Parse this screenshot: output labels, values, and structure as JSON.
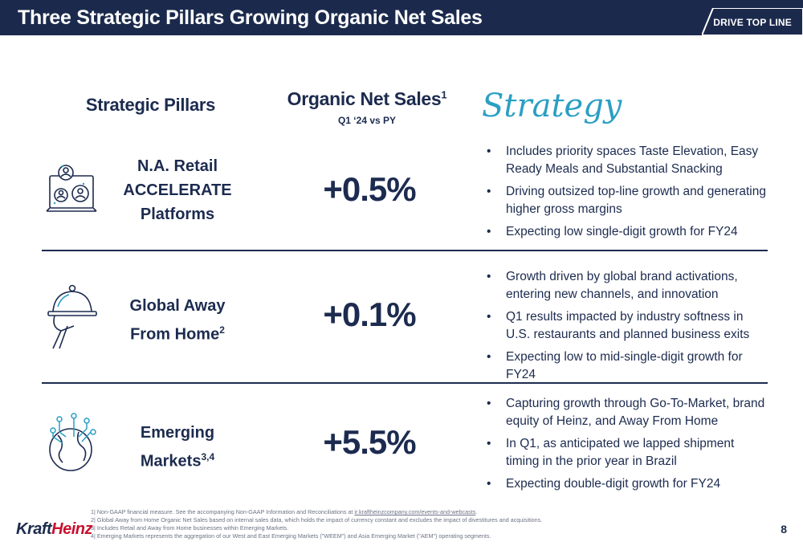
{
  "header": {
    "title": "Three Strategic Pillars Growing Organic Net Sales",
    "tag": "DRIVE TOP LINE"
  },
  "columns": {
    "pillars": "Strategic Pillars",
    "organic": "Organic Net Sales",
    "organic_sup": "1",
    "organic_sub": "Q1 ‘24 vs PY",
    "strategy": "Strategy"
  },
  "rows": [
    {
      "icon": "people-screen-icon",
      "pillar_lines": [
        "N.A. Retail",
        "ACCELERATE",
        "Platforms"
      ],
      "value": "+0.5%",
      "bullets": [
        "Includes priority spaces Taste Elevation, Easy Ready Meals and Substantial Snacking",
        "Driving outsized top-line growth and generating higher gross margins",
        "Expecting low single-digit growth for FY24"
      ]
    },
    {
      "icon": "cloche-icon",
      "pillar_lines": [
        "Global Away",
        "From Home"
      ],
      "pillar_sup": "2",
      "value": "+0.1%",
      "bullets": [
        "Growth driven by global brand activations, entering new channels, and innovation",
        "Q1 results impacted by industry softness in U.S. restaurants and planned business exits",
        "Expecting low to mid-single-digit growth for FY24"
      ]
    },
    {
      "icon": "globe-network-icon",
      "pillar_lines": [
        "Emerging",
        "Markets"
      ],
      "pillar_sup": "3,4",
      "value": "+5.5%",
      "bullets": [
        "Capturing growth through Go-To-Market, brand equity of Heinz, and Away From Home",
        "In Q1, as anticipated we lapped shipment timing in the prior year in Brazil",
        "Expecting double-digit growth for FY24"
      ]
    }
  ],
  "footnotes": {
    "f1_prefix": "1| Non-GAAP financial measure. See the accompanying Non-GAAP Information and Reconciliations at ",
    "f1_link": "ir.kraftheinzcompany.com/events-and-webcasts",
    "f1_suffix": ".",
    "f2": "2| Global Away from Home Organic Net Sales based on internal sales data, which holds the impact of currency constant and excludes the impact of divestitures and acquisitions.",
    "f3": "3| Includes Retail and Away from Home businesses within Emerging Markets.",
    "f4": "4| Emerging Markets represents the aggregation of our West and East Emerging Markets (\"WEEM\") and Asia Emerging Market (\"AEM\") operating segments."
  },
  "logo": {
    "part1": "Kraft",
    "part2": "Heinz"
  },
  "page_number": "8",
  "colors": {
    "navy": "#1b2a4c",
    "accent_teal": "#2a9fc4",
    "brand_red": "#c8102e"
  }
}
